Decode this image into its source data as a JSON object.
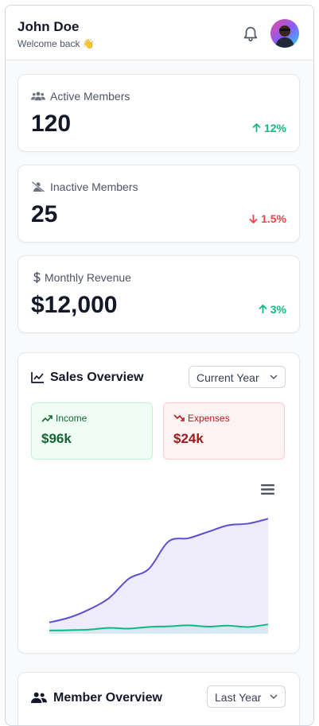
{
  "header": {
    "user_name": "John Doe",
    "welcome": "Welcome back 👋",
    "bell_icon": "bell-icon",
    "avatar_icon": "user-avatar"
  },
  "stats": [
    {
      "label": "Active Members",
      "value": "120",
      "change": "12%",
      "direction": "up",
      "icon": "users-icon"
    },
    {
      "label": "Inactive Members",
      "value": "25",
      "change": "1.5%",
      "direction": "down",
      "icon": "user-slash-icon"
    },
    {
      "label": "Monthly Revenue",
      "value": "$12,000",
      "change": "3%",
      "direction": "up",
      "icon": "dollar-icon"
    }
  ],
  "sales": {
    "title": "Sales Overview",
    "period": "Current Year",
    "income_label": "Income",
    "income_value": "$96k",
    "expenses_label": "Expenses",
    "expenses_value": "$24k",
    "menu_icon": "hamburger-menu-icon"
  },
  "members": {
    "title": "Member Overview",
    "period": "Last Year"
  },
  "colors": {
    "income_line": "#5b4fd6",
    "income_fill": "#ece9fb",
    "expense_line": "#10b981",
    "expense_fill": "#d6e8ee",
    "up": "#10b981",
    "down": "#ef4444"
  },
  "chart_data": {
    "type": "area",
    "title": "",
    "xlabel": "",
    "ylabel": "",
    "grid": false,
    "series": [
      {
        "values": [
          7,
          10,
          15,
          22,
          34,
          40,
          57,
          59,
          63,
          67,
          68,
          71
        ]
      },
      {
        "values": [
          2,
          2.2,
          2.6,
          3.6,
          3.2,
          4.2,
          4.6,
          5.2,
          4.4,
          5,
          4.2,
          5.8
        ]
      }
    ],
    "ylim": [
      0,
      80
    ]
  }
}
